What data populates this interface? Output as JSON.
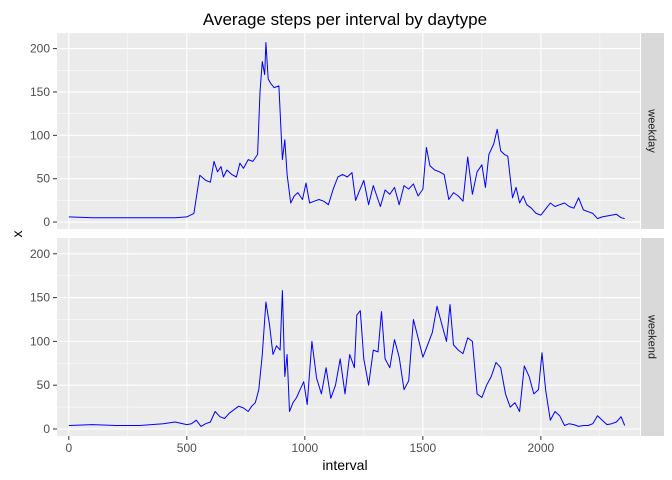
{
  "chart_data": {
    "type": "line",
    "title": "Average steps per interval by daytype",
    "xlabel": "interval",
    "ylabel": "x",
    "xlim": [
      -50,
      2420
    ],
    "ylim": [
      -8,
      218
    ],
    "x_ticks": [
      0,
      500,
      1000,
      1500,
      2000
    ],
    "y_ticks": [
      0,
      50,
      100,
      150,
      200
    ],
    "grid": true,
    "line_color": "#0000FF",
    "panel_background": "#EBEBEB",
    "strip_background": "#D9D9D9",
    "facet_position": "right",
    "facets": [
      {
        "name": "weekday",
        "x": [
          0,
          100,
          200,
          300,
          400,
          450,
          500,
          530,
          555,
          580,
          600,
          615,
          630,
          645,
          655,
          670,
          690,
          710,
          725,
          740,
          760,
          780,
          800,
          810,
          820,
          830,
          835,
          845,
          855,
          870,
          890,
          905,
          915,
          925,
          940,
          955,
          970,
          990,
          1005,
          1020,
          1040,
          1060,
          1080,
          1100,
          1120,
          1140,
          1160,
          1180,
          1200,
          1215,
          1230,
          1250,
          1270,
          1290,
          1305,
          1320,
          1340,
          1360,
          1380,
          1400,
          1420,
          1440,
          1460,
          1480,
          1500,
          1515,
          1530,
          1550,
          1570,
          1590,
          1610,
          1630,
          1650,
          1670,
          1690,
          1710,
          1730,
          1750,
          1765,
          1780,
          1800,
          1815,
          1830,
          1845,
          1860,
          1880,
          1895,
          1910,
          1925,
          1940,
          1960,
          1980,
          2000,
          2020,
          2040,
          2060,
          2080,
          2100,
          2120,
          2140,
          2160,
          2180,
          2200,
          2220,
          2240,
          2260,
          2280,
          2300,
          2320,
          2340,
          2355
        ],
        "values": [
          6,
          5,
          5,
          5,
          5,
          5,
          6,
          10,
          54,
          48,
          46,
          70,
          58,
          64,
          52,
          60,
          55,
          52,
          68,
          62,
          72,
          70,
          78,
          150,
          185,
          170,
          207,
          165,
          160,
          155,
          157,
          72,
          95,
          55,
          22,
          30,
          34,
          26,
          45,
          22,
          24,
          26,
          24,
          20,
          38,
          52,
          55,
          52,
          57,
          25,
          35,
          48,
          20,
          42,
          30,
          18,
          37,
          32,
          40,
          20,
          42,
          38,
          44,
          30,
          38,
          86,
          65,
          60,
          58,
          55,
          26,
          34,
          30,
          24,
          75,
          32,
          58,
          66,
          40,
          78,
          90,
          107,
          82,
          78,
          76,
          28,
          40,
          22,
          30,
          20,
          16,
          10,
          8,
          15,
          22,
          18,
          20,
          22,
          18,
          16,
          28,
          14,
          12,
          10,
          4,
          6,
          7,
          8,
          9,
          5,
          4
        ]
      },
      {
        "name": "weekend",
        "x": [
          0,
          100,
          200,
          300,
          400,
          450,
          500,
          520,
          540,
          560,
          580,
          600,
          620,
          640,
          660,
          680,
          700,
          720,
          740,
          760,
          775,
          790,
          805,
          820,
          835,
          850,
          865,
          880,
          895,
          905,
          915,
          925,
          935,
          950,
          965,
          980,
          995,
          1010,
          1030,
          1050,
          1070,
          1090,
          1110,
          1130,
          1150,
          1170,
          1190,
          1210,
          1220,
          1235,
          1250,
          1270,
          1290,
          1310,
          1325,
          1340,
          1360,
          1380,
          1400,
          1420,
          1440,
          1460,
          1480,
          1500,
          1520,
          1540,
          1560,
          1580,
          1600,
          1615,
          1630,
          1650,
          1670,
          1690,
          1710,
          1730,
          1750,
          1770,
          1790,
          1810,
          1830,
          1850,
          1870,
          1890,
          1910,
          1930,
          1950,
          1970,
          1990,
          2005,
          2020,
          2040,
          2060,
          2080,
          2100,
          2120,
          2140,
          2160,
          2180,
          2200,
          2220,
          2240,
          2260,
          2280,
          2300,
          2320,
          2340,
          2355
        ],
        "values": [
          4,
          5,
          4,
          4,
          6,
          8,
          5,
          6,
          10,
          3,
          6,
          8,
          20,
          14,
          12,
          18,
          22,
          26,
          24,
          20,
          26,
          30,
          45,
          85,
          145,
          120,
          85,
          95,
          90,
          158,
          60,
          85,
          20,
          30,
          36,
          45,
          54,
          28,
          100,
          58,
          40,
          70,
          35,
          50,
          80,
          40,
          85,
          70,
          130,
          135,
          80,
          50,
          90,
          88,
          134,
          80,
          70,
          102,
          82,
          45,
          55,
          125,
          104,
          82,
          96,
          110,
          140,
          120,
          100,
          142,
          96,
          90,
          86,
          104,
          100,
          40,
          36,
          50,
          60,
          76,
          70,
          40,
          25,
          30,
          20,
          72,
          60,
          40,
          45,
          87,
          45,
          10,
          20,
          15,
          4,
          6,
          5,
          3,
          4,
          4,
          6,
          15,
          10,
          5,
          6,
          8,
          14,
          4
        ]
      }
    ]
  }
}
